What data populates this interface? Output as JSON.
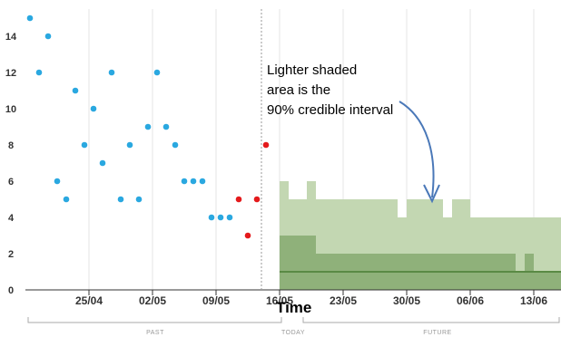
{
  "chart_data": {
    "type": "scatter",
    "title": "",
    "xlabel": "Time",
    "ylabel": "",
    "ylim": [
      0,
      15.5
    ],
    "yticks": [
      0,
      2,
      4,
      6,
      8,
      10,
      12,
      14
    ],
    "xticks": [
      "25/04",
      "02/05",
      "09/05",
      "16/05",
      "23/05",
      "30/05",
      "06/06",
      "13/06"
    ],
    "x_axis_start": "18/04",
    "x_axis_end": "15/06",
    "today": "13/05",
    "grid": "vertical",
    "annotation": "Lighter shaded area is the 90% credible interval",
    "sections": {
      "past": "PAST",
      "today": "TODAY",
      "future": "FUTURE"
    },
    "colors": {
      "past_points": "#2aa8e0",
      "recent_points": "#e41a1c",
      "ci90": "#c3d7b2",
      "ci50": "#8fb17a",
      "median": "#5a8a45",
      "arrow": "#4a78b8"
    },
    "series": [
      {
        "name": "",
        "points": [
          {
            "x": "18/04",
            "y": 15
          },
          {
            "x": "19/04",
            "y": 12
          },
          {
            "x": "20/04",
            "y": 14
          },
          {
            "x": "21/04",
            "y": 6
          },
          {
            "x": "22/04",
            "y": 5
          },
          {
            "x": "23/04",
            "y": 11
          },
          {
            "x": "24/04",
            "y": 8
          },
          {
            "x": "25/04",
            "y": 10
          },
          {
            "x": "26/04",
            "y": 7
          },
          {
            "x": "27/04",
            "y": 12
          },
          {
            "x": "28/04",
            "y": 5
          },
          {
            "x": "29/04",
            "y": 8
          },
          {
            "x": "30/04",
            "y": 5
          },
          {
            "x": "01/05",
            "y": 9
          },
          {
            "x": "02/05",
            "y": 12
          },
          {
            "x": "03/05",
            "y": 9
          },
          {
            "x": "04/05",
            "y": 8
          },
          {
            "x": "05/05",
            "y": 6
          },
          {
            "x": "06/05",
            "y": 6
          },
          {
            "x": "07/05",
            "y": 6
          },
          {
            "x": "08/05",
            "y": 4
          },
          {
            "x": "09/05",
            "y": 4
          },
          {
            "x": "10/05",
            "y": 4
          }
        ]
      },
      {
        "name": "",
        "points": [
          {
            "x": "11/05",
            "y": 5
          },
          {
            "x": "12/05",
            "y": 3
          },
          {
            "x": "13/05",
            "y": 5
          },
          {
            "x": "14/05",
            "y": 8
          }
        ]
      }
    ],
    "forecast": {
      "x": [
        "16/05",
        "17/05",
        "18/05",
        "19/05",
        "20/05",
        "21/05",
        "22/05",
        "23/05",
        "24/05",
        "25/05",
        "26/05",
        "27/05",
        "28/05",
        "29/05",
        "30/05",
        "31/05",
        "01/06",
        "02/06",
        "03/06",
        "04/06",
        "05/06",
        "06/06",
        "07/06",
        "08/06",
        "09/06",
        "10/06",
        "11/06",
        "12/06",
        "13/06",
        "14/06",
        "15/06"
      ],
      "ci90_upper": [
        6,
        5,
        5,
        6,
        5,
        5,
        5,
        5,
        5,
        5,
        5,
        5,
        5,
        4,
        5,
        5,
        5,
        5,
        4,
        5,
        5,
        4,
        4,
        4,
        4,
        4,
        4,
        4,
        4,
        4,
        4
      ],
      "ci90_lower": [
        0,
        0,
        0,
        0,
        0,
        0,
        0,
        0,
        0,
        0,
        0,
        0,
        0,
        0,
        0,
        0,
        0,
        0,
        0,
        0,
        0,
        0,
        0,
        0,
        0,
        0,
        0,
        0,
        0,
        0,
        0
      ],
      "ci50_upper": [
        3,
        3,
        3,
        3,
        2,
        2,
        2,
        2,
        2,
        2,
        2,
        2,
        2,
        2,
        2,
        2,
        2,
        2,
        2,
        2,
        2,
        2,
        2,
        2,
        2,
        2,
        1,
        2,
        1,
        1,
        1
      ],
      "ci50_lower": [
        0,
        0,
        0,
        0,
        0,
        0,
        0,
        0,
        0,
        0,
        0,
        0,
        0,
        0,
        0,
        0,
        0,
        0,
        0,
        0,
        0,
        0,
        0,
        0,
        0,
        0,
        0,
        0,
        0,
        0,
        0
      ],
      "median": [
        1,
        1,
        1,
        1,
        1,
        1,
        1,
        1,
        1,
        1,
        1,
        1,
        1,
        1,
        1,
        1,
        1,
        1,
        1,
        1,
        1,
        1,
        1,
        1,
        1,
        1,
        1,
        1,
        1,
        1,
        1
      ]
    }
  }
}
